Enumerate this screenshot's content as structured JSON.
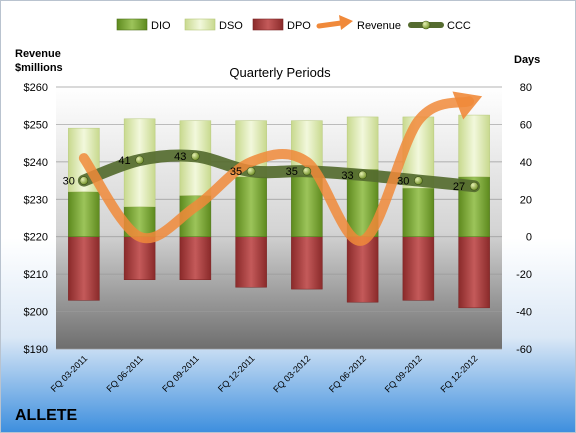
{
  "company": "ALLETE",
  "chart_data": {
    "type": "bar",
    "title": "Quarterly Periods",
    "left_axis_label": [
      "Revenue",
      "$millions"
    ],
    "right_axis_label": "Days",
    "categories": [
      "FQ 03-2011",
      "FQ 06-2011",
      "FQ 09-2011",
      "FQ 12-2011",
      "FQ 03-2012",
      "FQ 06-2012",
      "FQ 09-2012",
      "FQ 12-2012"
    ],
    "left_axis": {
      "min": 190,
      "max": 260,
      "step": 10,
      "tick_labels": [
        "$190",
        "$200",
        "$210",
        "$220",
        "$230",
        "$240",
        "$250",
        "$260"
      ]
    },
    "right_axis": {
      "min": -60,
      "max": 80,
      "step": 20,
      "tick_labels": [
        "-60",
        "-40",
        "-20",
        "0",
        "20",
        "40",
        "60",
        "80"
      ]
    },
    "legend": [
      "DIO",
      "DSO",
      "DPO",
      "Revenue",
      "CCC"
    ],
    "legend_position": "top",
    "series": [
      {
        "name": "DIO",
        "axis": "right",
        "stacked": true,
        "color": "#7ea53a",
        "values": [
          24,
          16,
          22,
          32,
          33,
          36,
          26,
          32
        ]
      },
      {
        "name": "DSO",
        "axis": "right",
        "stacked": true,
        "color": "#e0ecb9",
        "values": [
          34,
          47,
          40,
          30,
          29,
          28,
          38,
          33
        ]
      },
      {
        "name": "DPO",
        "axis": "right",
        "stacked": true,
        "color": "#a83c3c",
        "values": [
          -34,
          -23,
          -23,
          -27,
          -28,
          -35,
          -34,
          -38
        ]
      },
      {
        "name": "Revenue",
        "axis": "left",
        "type": "line",
        "color": "#f0893a",
        "values": [
          241,
          220,
          228,
          240,
          240,
          219,
          251,
          257
        ]
      },
      {
        "name": "CCC",
        "axis": "right",
        "type": "line",
        "color": "#556b2f",
        "values": [
          30,
          41,
          43,
          35,
          35,
          33,
          30,
          27
        ],
        "data_labels": [
          "30",
          "41",
          "43",
          "35",
          "35",
          "33",
          "30",
          "27"
        ]
      }
    ]
  }
}
